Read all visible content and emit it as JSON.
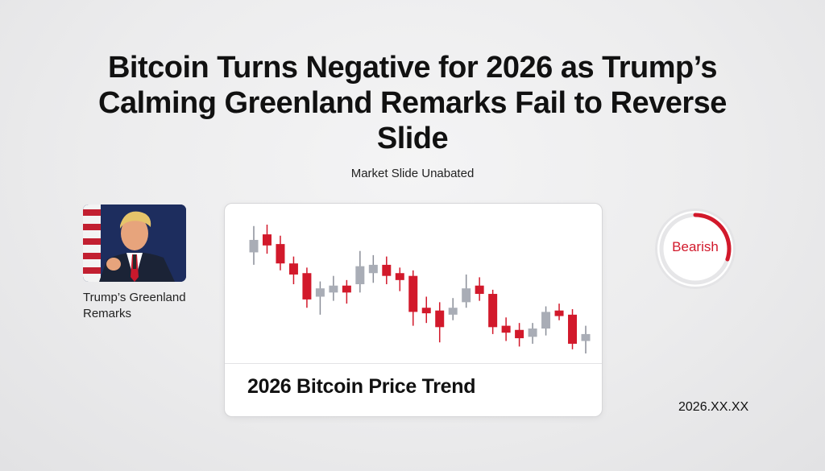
{
  "headline": "Bitcoin Turns Negative for 2026 as Trump’s Calming Greenland Remarks Fail to Reverse Slide",
  "subtitle": "Market Slide Unabated",
  "photo": {
    "caption": "Trump’s Greenland Remarks"
  },
  "badge": {
    "label": "Bearish",
    "level": 0.3
  },
  "date": "2026.XX.XX",
  "colors": {
    "bearish": "#d2192b",
    "bullish": "#a9adb6",
    "wick": "#8a8e98",
    "gauge_track": "#e6e6e8"
  },
  "chart_data": {
    "type": "candlestick",
    "title": "2026 Bitcoin Price Trend",
    "xlabel": "",
    "ylabel": "",
    "ylim": [
      0,
      100
    ],
    "grid": false,
    "axes_visible": false,
    "candles": [
      {
        "open": 73,
        "close": 82,
        "high": 92,
        "low": 64
      },
      {
        "open": 86,
        "close": 78,
        "high": 93,
        "low": 72
      },
      {
        "open": 79,
        "close": 65,
        "high": 85,
        "low": 60
      },
      {
        "open": 65,
        "close": 57,
        "high": 70,
        "low": 50
      },
      {
        "open": 58,
        "close": 39,
        "high": 62,
        "low": 33
      },
      {
        "open": 41,
        "close": 47,
        "high": 52,
        "low": 28
      },
      {
        "open": 44,
        "close": 49,
        "high": 56,
        "low": 38
      },
      {
        "open": 49,
        "close": 44,
        "high": 53,
        "low": 36
      },
      {
        "open": 50,
        "close": 63,
        "high": 74,
        "low": 44
      },
      {
        "open": 58,
        "close": 64,
        "high": 71,
        "low": 51
      },
      {
        "open": 64,
        "close": 56,
        "high": 70,
        "low": 50
      },
      {
        "open": 58,
        "close": 53,
        "high": 62,
        "low": 45
      },
      {
        "open": 56,
        "close": 30,
        "high": 60,
        "low": 20
      },
      {
        "open": 33,
        "close": 29,
        "high": 41,
        "low": 22
      },
      {
        "open": 31,
        "close": 19,
        "high": 37,
        "low": 8
      },
      {
        "open": 28,
        "close": 33,
        "high": 40,
        "low": 24
      },
      {
        "open": 37,
        "close": 47,
        "high": 57,
        "low": 33
      },
      {
        "open": 49,
        "close": 43,
        "high": 55,
        "low": 38
      },
      {
        "open": 43,
        "close": 19,
        "high": 46,
        "low": 14
      },
      {
        "open": 20,
        "close": 15,
        "high": 26,
        "low": 9
      },
      {
        "open": 17,
        "close": 11,
        "high": 22,
        "low": 5
      },
      {
        "open": 12,
        "close": 18,
        "high": 22,
        "low": 7
      },
      {
        "open": 18,
        "close": 30,
        "high": 34,
        "low": 13
      },
      {
        "open": 31,
        "close": 27,
        "high": 36,
        "low": 24
      },
      {
        "open": 28,
        "close": 7,
        "high": 32,
        "low": 3
      },
      {
        "open": 9,
        "close": 14,
        "high": 20,
        "low": 0
      }
    ]
  }
}
